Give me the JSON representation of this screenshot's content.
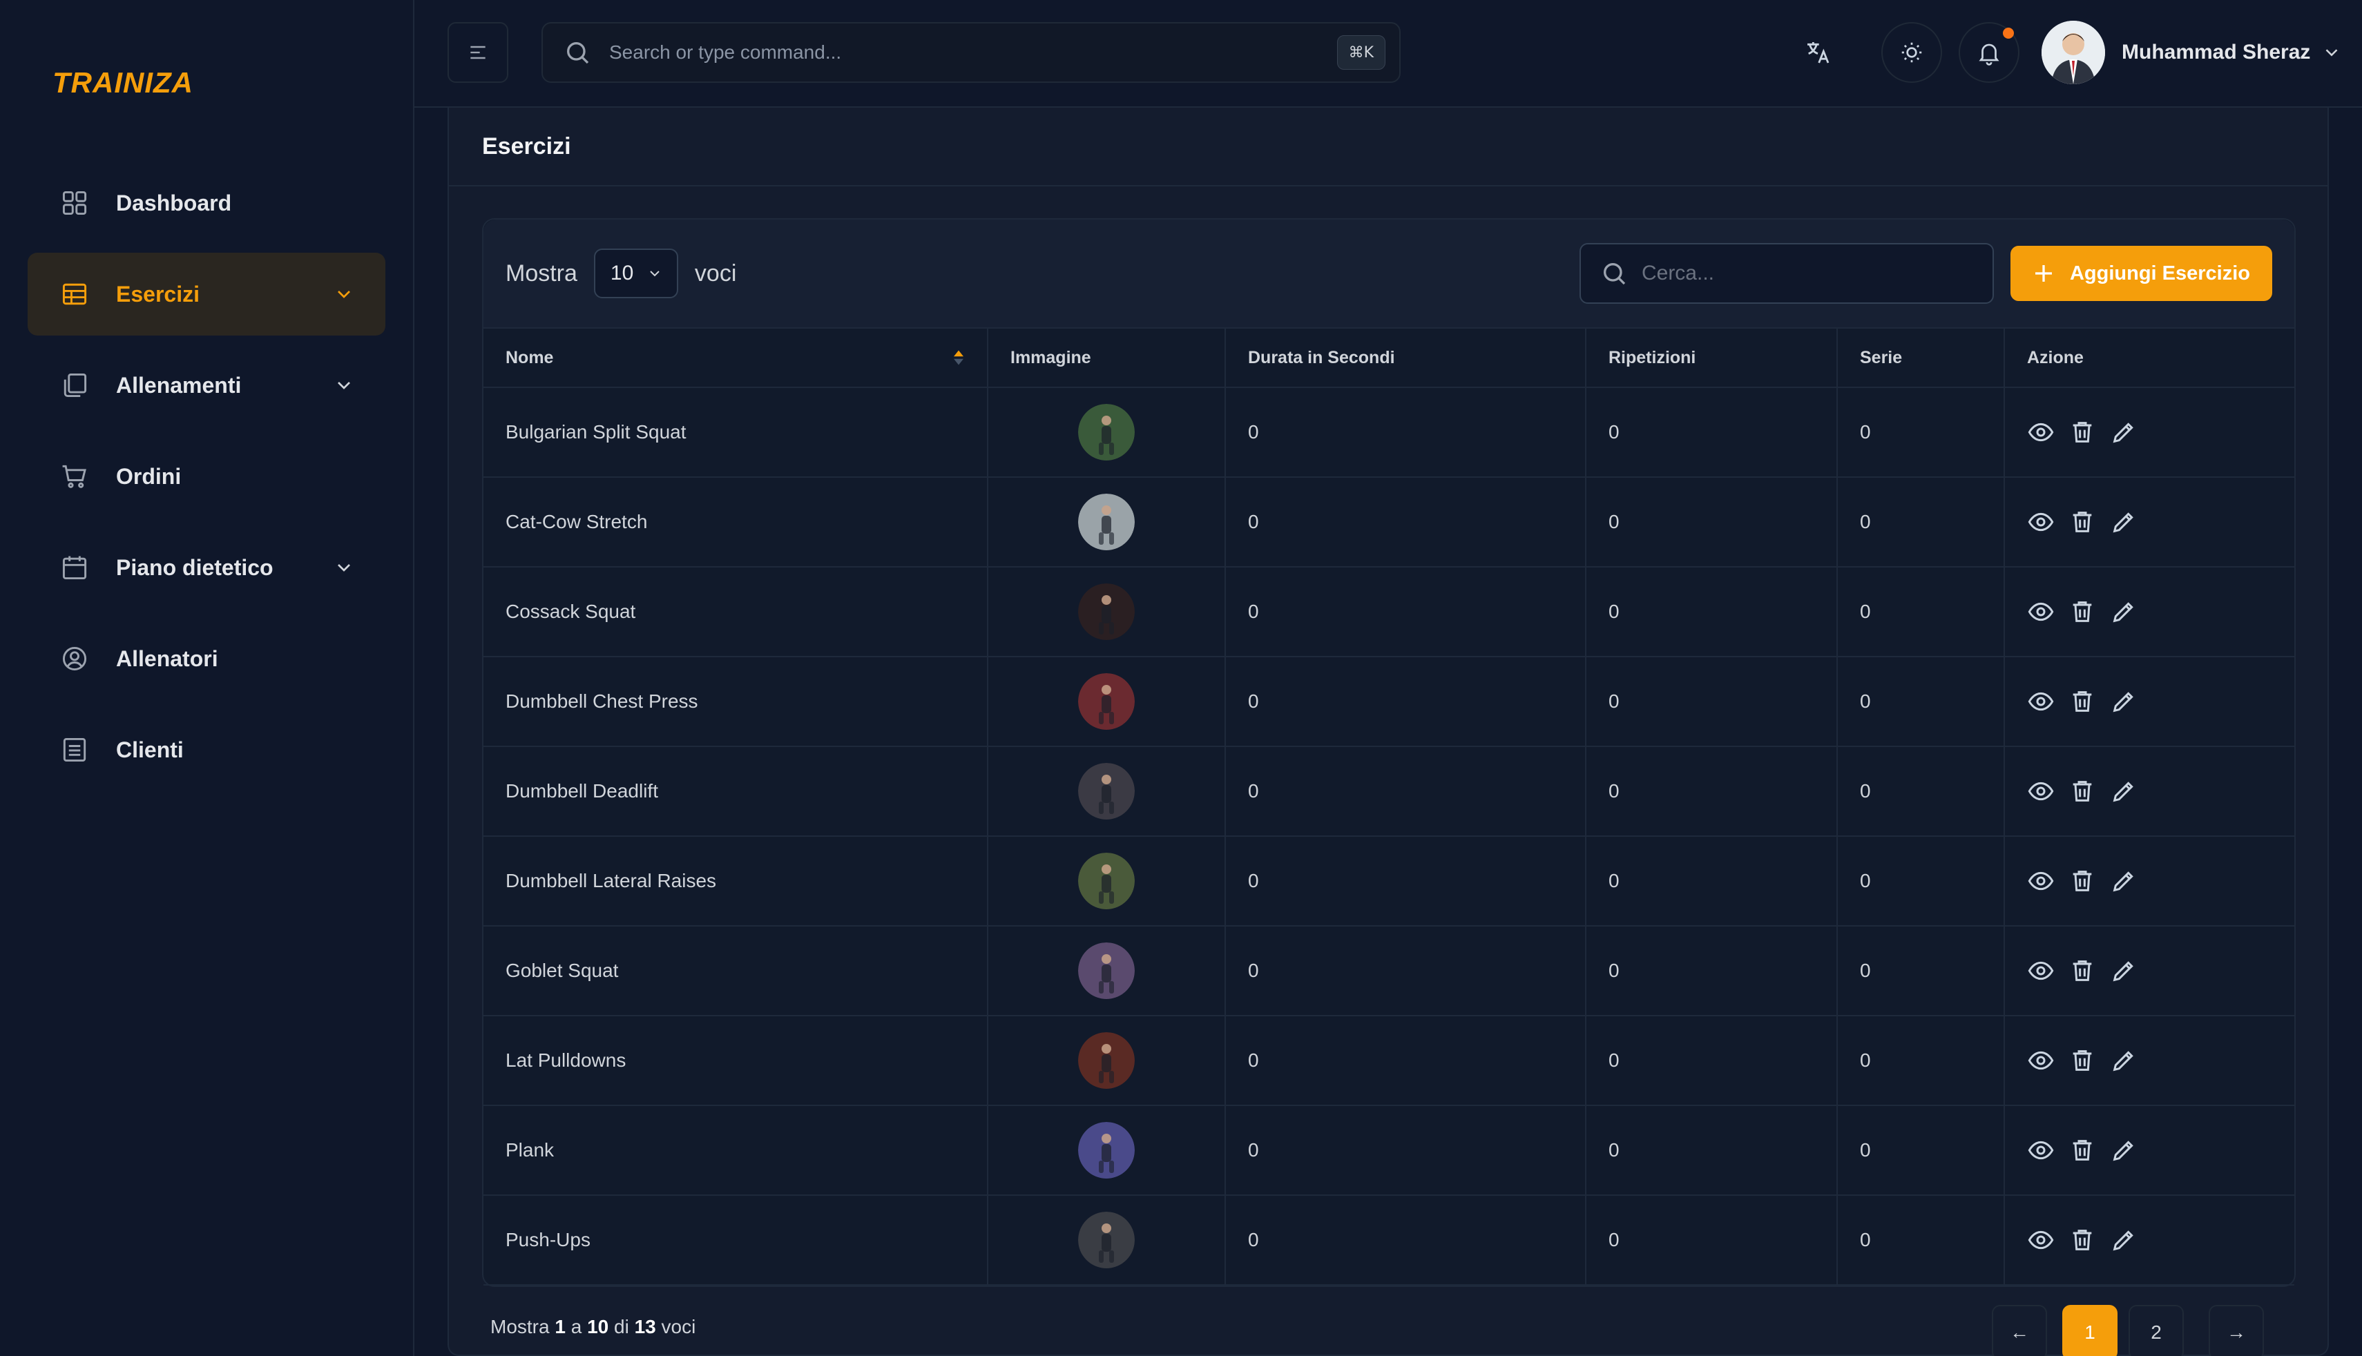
{
  "brand": {
    "logo": "TRAINIZA",
    "accent": "#f59e0b"
  },
  "sidebar": {
    "items": [
      {
        "label": "Dashboard",
        "icon": "grid-icon",
        "active": false,
        "has_chevron": false
      },
      {
        "label": "Esercizi",
        "icon": "table-icon",
        "active": true,
        "has_chevron": true
      },
      {
        "label": "Allenamenti",
        "icon": "copy-icon",
        "active": false,
        "has_chevron": true
      },
      {
        "label": "Ordini",
        "icon": "cart-icon",
        "active": false,
        "has_chevron": false
      },
      {
        "label": "Piano dietetico",
        "icon": "calendar-icon",
        "active": false,
        "has_chevron": true
      },
      {
        "label": "Allenatori",
        "icon": "user-circle-icon",
        "active": false,
        "has_chevron": false
      },
      {
        "label": "Clienti",
        "icon": "list-icon",
        "active": false,
        "has_chevron": false
      }
    ]
  },
  "header": {
    "search_placeholder": "Search or type command...",
    "shortcut": "⌘K",
    "user_name": "Muhammad Sheraz"
  },
  "page": {
    "title": "Esercizi",
    "show_label": "Mostra",
    "entries_value": "10",
    "entries_label": "voci",
    "search_placeholder": "Cerca...",
    "add_button": "Aggiungi Esercizio"
  },
  "table": {
    "columns": [
      "Nome",
      "Immagine",
      "Durata in Secondi",
      "Ripetizioni",
      "Serie",
      "Azione"
    ],
    "rows": [
      {
        "name": "Bulgarian Split Squat",
        "duration": "0",
        "reps": "0",
        "sets": "0",
        "thumb": "#3a5a3a"
      },
      {
        "name": "Cat-Cow Stretch",
        "duration": "0",
        "reps": "0",
        "sets": "0",
        "thumb": "#9aa3a8"
      },
      {
        "name": "Cossack Squat",
        "duration": "0",
        "reps": "0",
        "sets": "0",
        "thumb": "#2a1f22"
      },
      {
        "name": "Dumbbell Chest Press",
        "duration": "0",
        "reps": "0",
        "sets": "0",
        "thumb": "#6b2a30"
      },
      {
        "name": "Dumbbell Deadlift",
        "duration": "0",
        "reps": "0",
        "sets": "0",
        "thumb": "#3b3a44"
      },
      {
        "name": "Dumbbell Lateral Raises",
        "duration": "0",
        "reps": "0",
        "sets": "0",
        "thumb": "#4a5a3a"
      },
      {
        "name": "Goblet Squat",
        "duration": "0",
        "reps": "0",
        "sets": "0",
        "thumb": "#5a4a6e"
      },
      {
        "name": "Lat Pulldowns",
        "duration": "0",
        "reps": "0",
        "sets": "0",
        "thumb": "#5a2a24"
      },
      {
        "name": "Plank",
        "duration": "0",
        "reps": "0",
        "sets": "0",
        "thumb": "#4a4a8a"
      },
      {
        "name": "Push-Ups",
        "duration": "0",
        "reps": "0",
        "sets": "0",
        "thumb": "#3a3d44"
      }
    ]
  },
  "footer": {
    "prefix": "Mostra",
    "from": "1",
    "a": "a",
    "to": "10",
    "di": "di",
    "total": "13",
    "suffix": "voci"
  },
  "pagination": {
    "prev": "←",
    "pages": [
      "1",
      "2"
    ],
    "current": "1",
    "next": "→"
  }
}
